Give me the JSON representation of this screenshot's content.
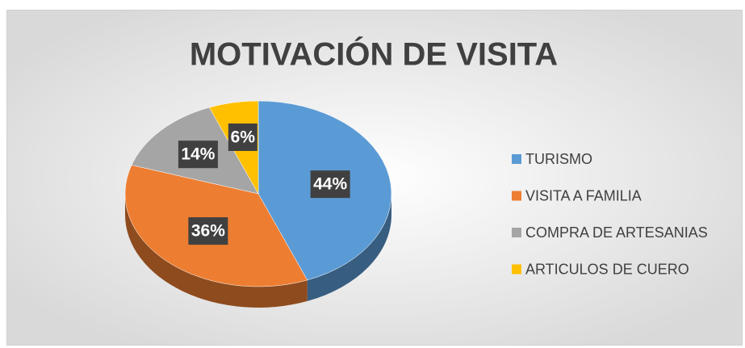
{
  "chart_data": {
    "type": "pie",
    "title": "MOTIVACIÓN DE VISITA",
    "categories": [
      "TURISMO",
      "VISITA A FAMILIA",
      "COMPRA DE ARTESANIAS",
      "ARTICULOS DE CUERO"
    ],
    "values": [
      44,
      36,
      14,
      6
    ],
    "value_labels": [
      "44%",
      "36%",
      "14%",
      "6%"
    ],
    "colors": [
      "#5b9bd5",
      "#ed7d31",
      "#a5a5a5",
      "#ffc000"
    ],
    "legend": "right"
  }
}
